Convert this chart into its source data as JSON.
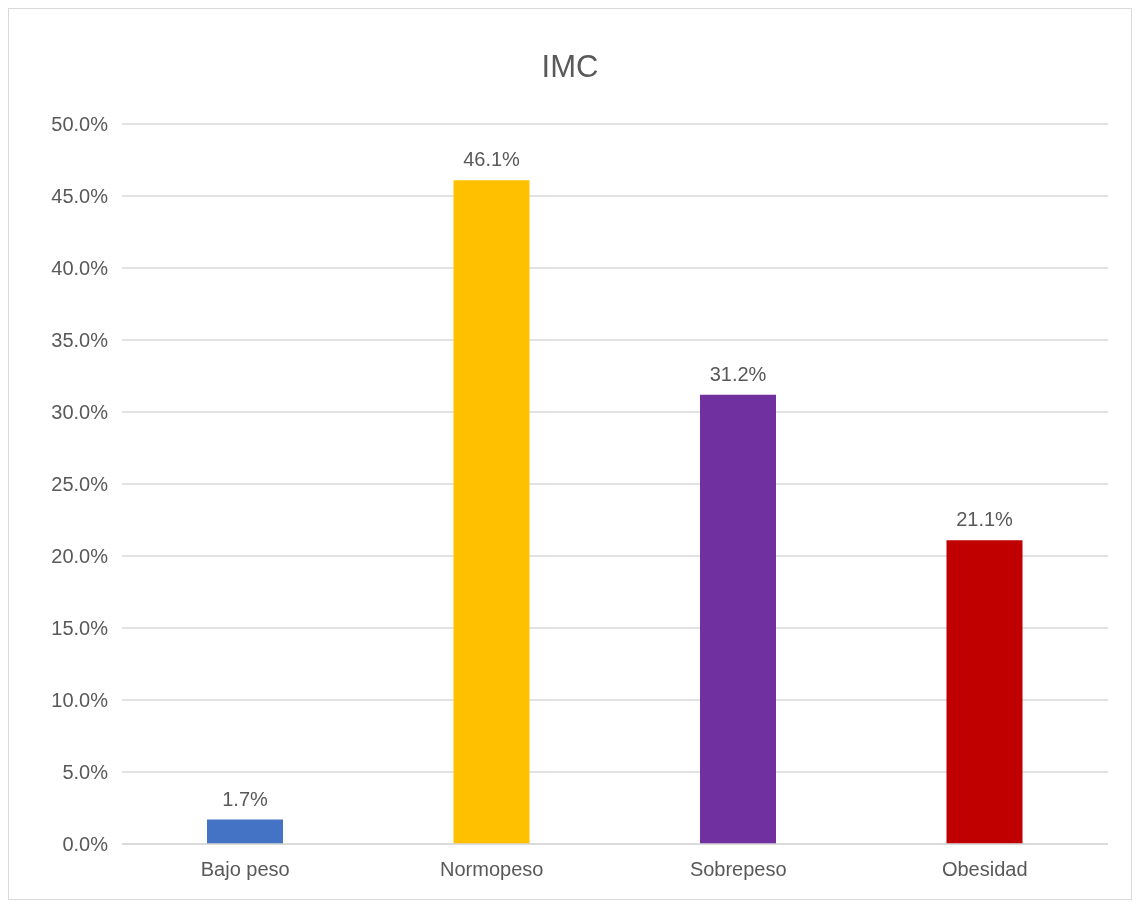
{
  "chart_data": {
    "type": "bar",
    "title": "IMC",
    "categories": [
      "Bajo peso",
      "Normopeso",
      "Sobrepeso",
      "Obesidad"
    ],
    "values": [
      1.7,
      46.1,
      31.2,
      21.1
    ],
    "colors": [
      "#4472c4",
      "#ffc000",
      "#7030a0",
      "#c00000"
    ],
    "value_labels": [
      "1.7%",
      "46.1%",
      "31.2%",
      "21.1%"
    ],
    "ylim": [
      0,
      50
    ],
    "yticks": [
      {
        "value": 0,
        "label": "0.0%"
      },
      {
        "value": 5,
        "label": "5.0%"
      },
      {
        "value": 10,
        "label": "10.0%"
      },
      {
        "value": 15,
        "label": "15.0%"
      },
      {
        "value": 20,
        "label": "20.0%"
      },
      {
        "value": 25,
        "label": "25.0%"
      },
      {
        "value": 30,
        "label": "30.0%"
      },
      {
        "value": 35,
        "label": "35.0%"
      },
      {
        "value": 40,
        "label": "40.0%"
      },
      {
        "value": 45,
        "label": "45.0%"
      },
      {
        "value": 50,
        "label": "50.0%"
      }
    ],
    "grid": "y"
  }
}
